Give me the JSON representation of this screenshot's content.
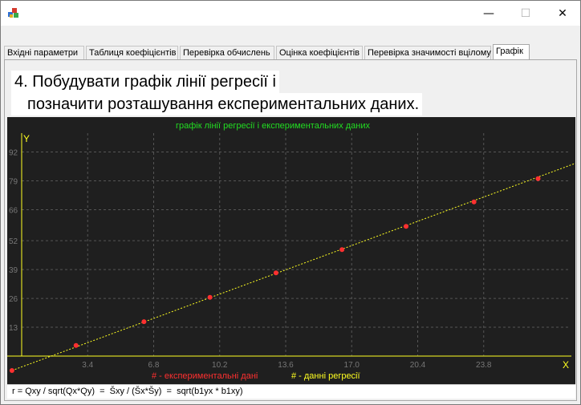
{
  "window": {
    "minimize_glyph": "—",
    "maximize_glyph": "☐",
    "close_glyph": "✕"
  },
  "tabs": [
    {
      "label": "Вхідні параметри"
    },
    {
      "label": "Таблиця коефіцієнтів"
    },
    {
      "label": "Перевірка обчислень"
    },
    {
      "label": "Оцінка коефіцієнтів"
    },
    {
      "label": "Перевірка значимості вцілому"
    },
    {
      "label": "Графік"
    }
  ],
  "heading": {
    "line1": "4. Побудувати графік лінії регресії і",
    "line2": "позначити розташування експериментальних даних."
  },
  "chart_data": {
    "type": "line",
    "title": "графік лінії регресії і експериментальних даних",
    "xlabel": "X",
    "ylabel": "Y",
    "xlim": [
      0,
      27.2
    ],
    "ylim": [
      0,
      94
    ],
    "x_ticks": [
      "3.4",
      "6.8",
      "10.2",
      "13.6",
      "17.0",
      "20.4",
      "23.8"
    ],
    "y_ticks": [
      "13",
      "26",
      "39",
      "52",
      "66",
      "79",
      "92"
    ],
    "series": [
      {
        "name": "# - експериментальні дані",
        "color": "#ff3030",
        "points": [
          [
            -0.5,
            -6.5
          ],
          [
            2.8,
            4.8
          ],
          [
            6.3,
            15.5
          ],
          [
            9.7,
            26.5
          ],
          [
            13.1,
            37.5
          ],
          [
            16.5,
            48
          ],
          [
            19.8,
            58.5
          ],
          [
            23.3,
            69.5
          ],
          [
            26.6,
            80
          ],
          [
            29.8,
            90.5
          ]
        ]
      },
      {
        "name": "# - данні регресії",
        "color": "#ffff20",
        "line": [
          [
            -0.5,
            -6.5
          ],
          [
            29.8,
            91.0
          ]
        ]
      }
    ],
    "colors": {
      "background": "#1f1f1f",
      "axis": "#ffff20",
      "grid": "#555555",
      "ticks": "#777777",
      "title": "#22dd22"
    }
  },
  "formula": "r = Qxy / sqrt(Qx*Qy)  =  Šxy / (Šx*Šy)  =  sqrt(b1yx * b1xy)"
}
